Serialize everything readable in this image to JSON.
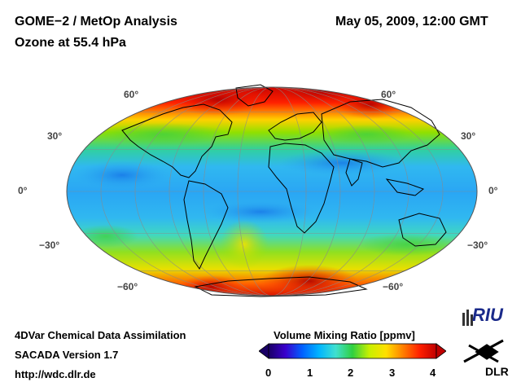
{
  "header": {
    "title_line1": "GOME−2 / MetOp Analysis",
    "title_line2": "Ozone at 55.4 hPa",
    "date": "May 05, 2009, 12:00 GMT"
  },
  "map": {
    "projection": "mollweide",
    "lat_labels_left": [
      "60°",
      "30°",
      "0°",
      "−30°",
      "−60°"
    ],
    "lat_labels_right": [
      "60°",
      "30°",
      "0°",
      "−30°",
      "−60°"
    ]
  },
  "footer": {
    "line1": "4DVar Chemical Data Assimilation",
    "line2": "SACADA Version 1.7",
    "line3": "http://wdc.dlr.de"
  },
  "colorbar": {
    "title": "Volume Mixing Ratio [ppmv]",
    "ticks": [
      "0",
      "1",
      "2",
      "3",
      "4"
    ],
    "min": 0,
    "max": 4,
    "colors": [
      "#1a0066",
      "#3a00cc",
      "#0060ff",
      "#00b4ff",
      "#40e0d0",
      "#30d040",
      "#c8f000",
      "#ffe000",
      "#ff8000",
      "#ff2000",
      "#c00000"
    ]
  },
  "logos": {
    "riu": "RIU",
    "dlr": "DLR"
  }
}
